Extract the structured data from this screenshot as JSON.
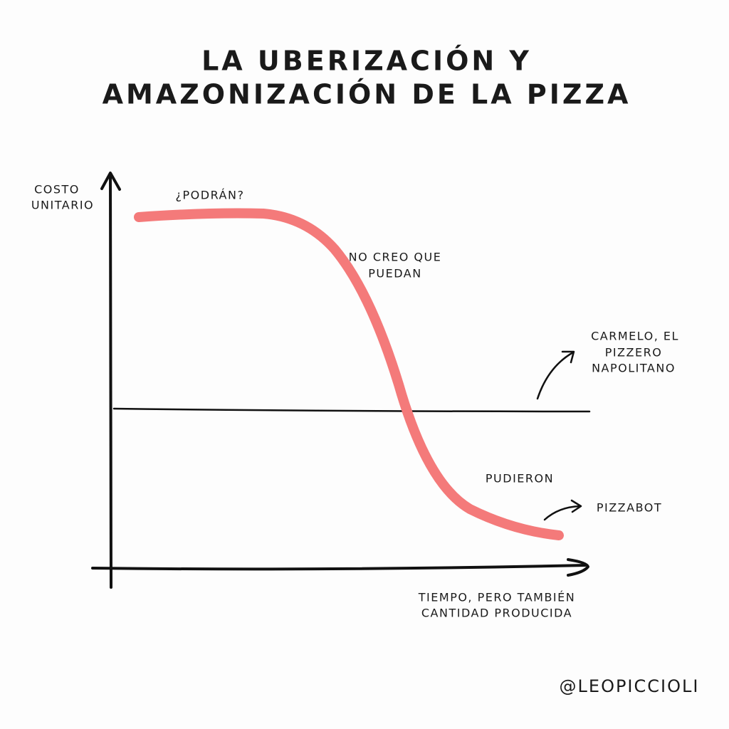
{
  "title": [
    "LA UBERIZACIÓN Y",
    "AMAZONIZACIÓN DE LA PIZZA"
  ],
  "y_axis_label": [
    "COSTO",
    "UNITARIO"
  ],
  "x_axis_label": [
    "TIEMPO, PERO TAMBIÉN",
    "CANTIDAD PRODUCIDA"
  ],
  "annotations": {
    "podran": [
      "¿PODRÁN?"
    ],
    "no_creo": [
      "NO CREO QUE",
      "PUEDAN"
    ],
    "carmelo": [
      "CARMELO, EL",
      "PIZZERO",
      "NAPOLITANO"
    ],
    "pudieron": [
      "PUDIERON"
    ],
    "pizzabot": [
      "PIZZABOT"
    ]
  },
  "credit": "@LEOPICCIOLI"
}
